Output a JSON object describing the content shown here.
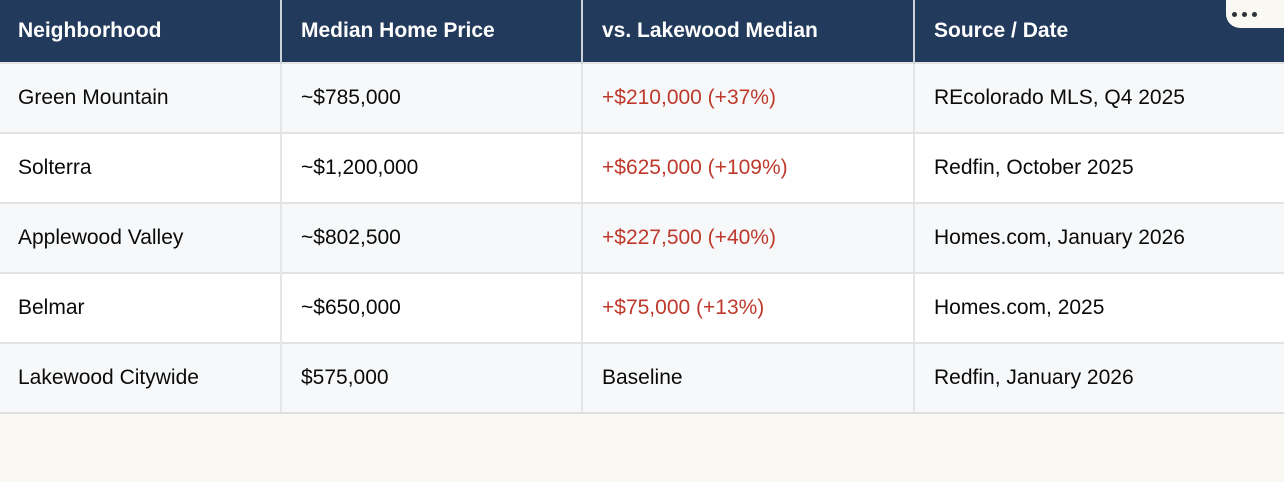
{
  "page": {
    "background_color": "#faf8f2"
  },
  "toolbar": {
    "more_icon": "ellipsis-horizontal"
  },
  "colors": {
    "header_background": "#223a5c",
    "header_text": "#ffffff",
    "row_stripe": "#f7f8f9",
    "row_white": "#ffffff",
    "delta_red": "#be392c",
    "body_text": "#0a0a0a"
  },
  "table": {
    "columns": [
      {
        "key": "neighborhood",
        "label": "Neighborhood"
      },
      {
        "key": "price",
        "label": "Median Home Price"
      },
      {
        "key": "vs",
        "label": "vs. Lakewood Median"
      },
      {
        "key": "source",
        "label": "Source / Date"
      }
    ],
    "rows": [
      {
        "neighborhood": "Green Mountain",
        "price": "~$785,000",
        "vs": "+$210,000 (+37%)",
        "vs_is_increase": true,
        "source": "REcolorado MLS, Q4 2025"
      },
      {
        "neighborhood": "Solterra",
        "price": "~$1,200,000",
        "vs": "+$625,000 (+109%)",
        "vs_is_increase": true,
        "source": "Redfin, October 2025"
      },
      {
        "neighborhood": "Applewood Valley",
        "price": "~$802,500",
        "vs": "+$227,500 (+40%)",
        "vs_is_increase": true,
        "source": "Homes.com, January 2026"
      },
      {
        "neighborhood": "Belmar",
        "price": "~$650,000",
        "vs": "+$75,000 (+13%)",
        "vs_is_increase": true,
        "source": "Homes.com, 2025"
      },
      {
        "neighborhood": "Lakewood Citywide",
        "price": "$575,000",
        "vs": "Baseline",
        "vs_is_increase": false,
        "source": "Redfin, January 2026"
      }
    ]
  }
}
